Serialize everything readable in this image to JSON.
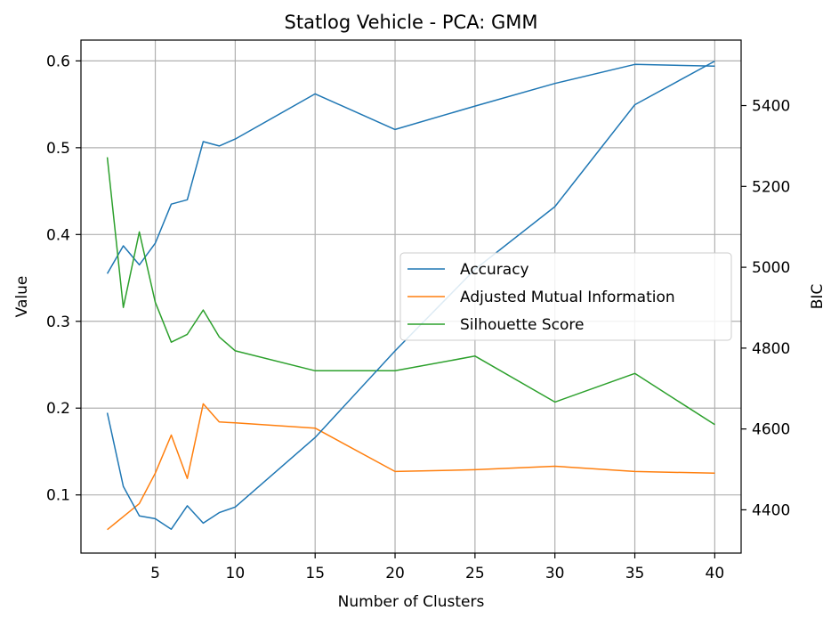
{
  "chart_data": {
    "type": "line",
    "title": "Statlog Vehicle - PCA: GMM",
    "xlabel": "Number of Clusters",
    "ylabel": "Value",
    "y2label": "BIC",
    "x": [
      2,
      3,
      4,
      5,
      6,
      7,
      8,
      9,
      10,
      15,
      20,
      25,
      30,
      35,
      40
    ],
    "xlim": [
      0.35,
      41.65
    ],
    "ylim": [
      0.033,
      0.624
    ],
    "y2lim": [
      4293,
      5562
    ],
    "xticks": [
      5,
      10,
      15,
      20,
      25,
      30,
      35,
      40
    ],
    "yticks": [
      0.1,
      0.2,
      0.3,
      0.4,
      0.5,
      0.6
    ],
    "y2ticks": [
      4400,
      4600,
      4800,
      5000,
      5200,
      5400
    ],
    "grid": true,
    "legend_position": "center-right",
    "series": [
      {
        "name": "Accuracy",
        "axis": "left",
        "color": "#1f77b4",
        "values": [
          0.355,
          0.387,
          0.365,
          0.39,
          0.435,
          0.44,
          0.507,
          0.502,
          0.51,
          0.562,
          0.521,
          0.548,
          0.574,
          0.596,
          0.594
        ]
      },
      {
        "name": "Adjusted Mutual Information",
        "axis": "left",
        "color": "#ff7f0e",
        "values": [
          0.06,
          0.075,
          0.09,
          0.125,
          0.169,
          0.119,
          0.205,
          0.184,
          0.183,
          0.177,
          0.127,
          0.129,
          0.133,
          0.127,
          0.125
        ]
      },
      {
        "name": "Silhouette Score",
        "axis": "left",
        "color": "#2ca02c",
        "values": [
          0.489,
          0.316,
          0.403,
          0.322,
          0.276,
          0.285,
          0.313,
          0.282,
          0.266,
          0.243,
          0.243,
          0.26,
          0.207,
          0.24,
          0.181
        ]
      },
      {
        "name": "BIC",
        "axis": "right",
        "color": "#1f77b4",
        "values": [
          4640,
          4458,
          4385,
          4378,
          4352,
          4410,
          4367,
          4393,
          4407,
          4579,
          4793,
          4995,
          5150,
          5402,
          5510
        ]
      }
    ]
  }
}
